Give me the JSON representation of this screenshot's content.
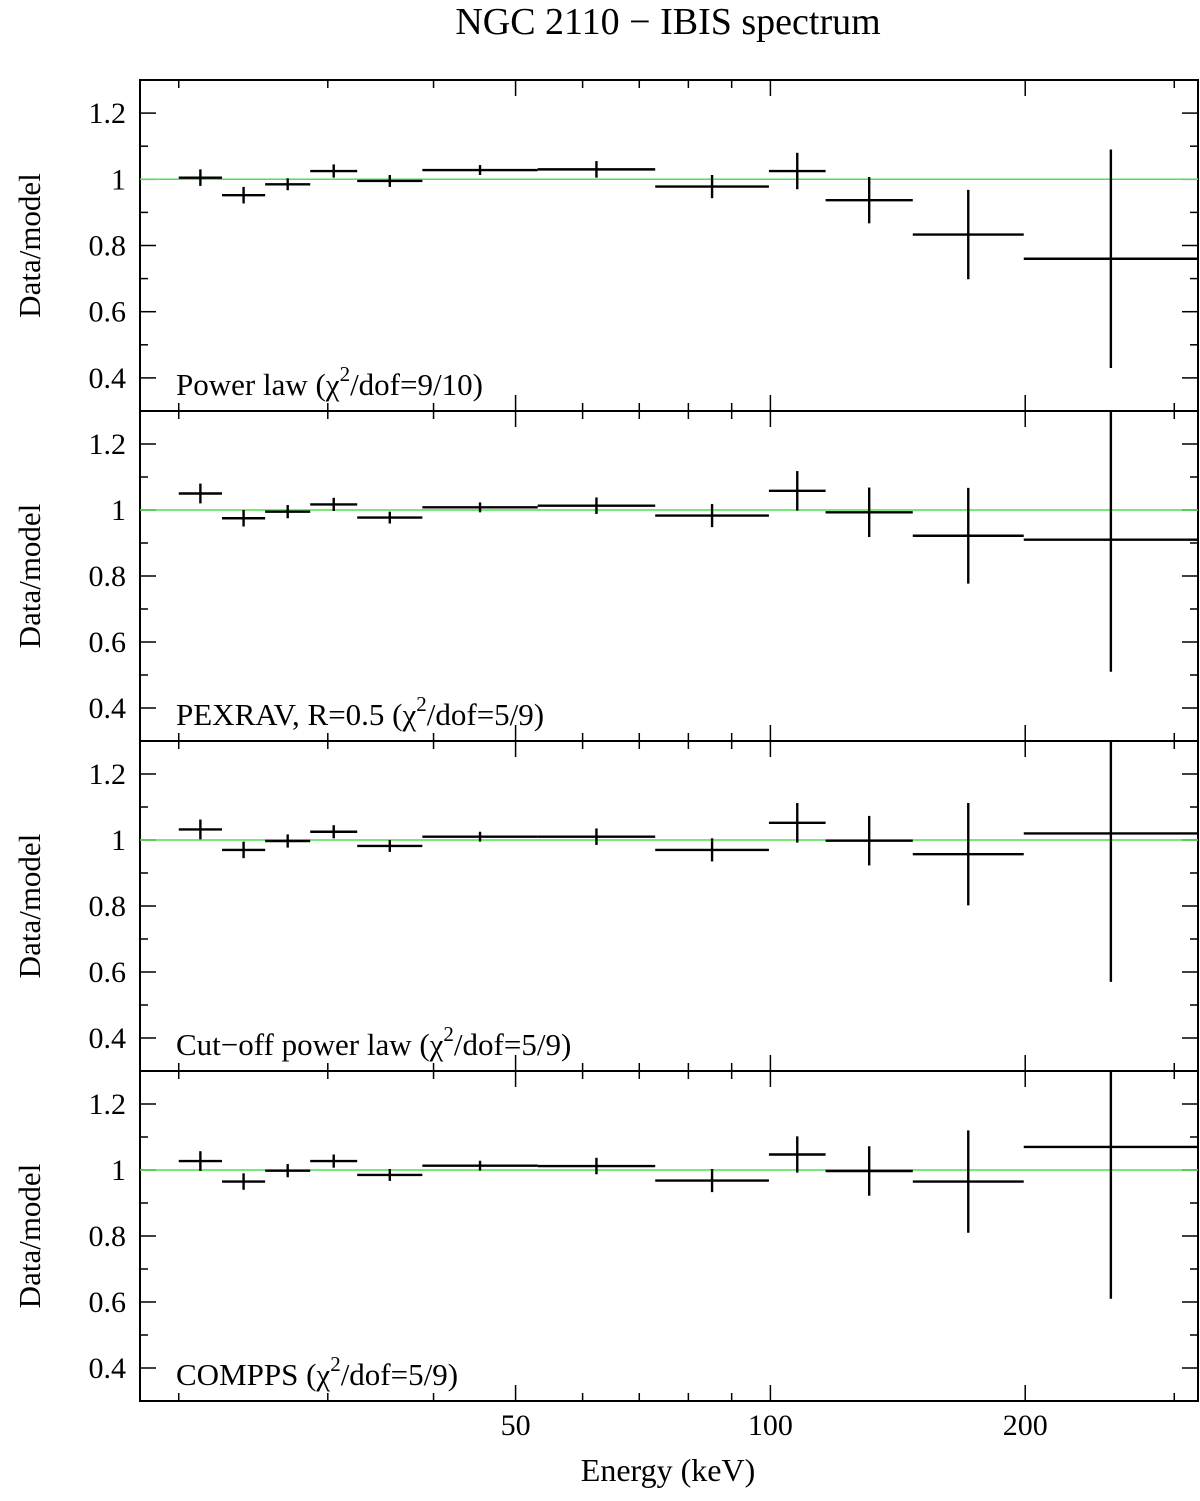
{
  "chart_data": {
    "type": "scatter",
    "title": "NGC 2110 − IBIS spectrum",
    "xlabel": "Energy (keV)",
    "ylabel": "Data/model",
    "x_scale": "log",
    "xlim": [
      18,
      320
    ],
    "ylim": [
      0.3,
      1.3
    ],
    "x_ticks": [
      50,
      100,
      200
    ],
    "x_tick_labels": [
      "50",
      "100",
      "200"
    ],
    "y_ticks": [
      0.4,
      0.6,
      0.8,
      1.0,
      1.2
    ],
    "y_tick_labels": [
      "0.4",
      "0.6",
      "0.8",
      "1",
      "1.2"
    ],
    "reference_line": {
      "y": 1.0,
      "color": "#4fe24f"
    },
    "grid": false,
    "x_bins": [
      {
        "lo": 20.0,
        "hi": 22.5
      },
      {
        "lo": 22.5,
        "hi": 25.3
      },
      {
        "lo": 25.3,
        "hi": 28.6
      },
      {
        "lo": 28.6,
        "hi": 32.5
      },
      {
        "lo": 32.5,
        "hi": 38.8
      },
      {
        "lo": 38.8,
        "hi": 53.1
      },
      {
        "lo": 53.1,
        "hi": 73.1
      },
      {
        "lo": 73.1,
        "hi": 99.6
      },
      {
        "lo": 99.6,
        "hi": 116.2
      },
      {
        "lo": 116.2,
        "hi": 147.3
      },
      {
        "lo": 147.3,
        "hi": 199.2
      },
      {
        "lo": 199.2,
        "hi": 320.0
      }
    ],
    "panels": [
      {
        "label": "Power law (χ",
        "label_sup": "2",
        "label_tail": "/dof=9/10)",
        "series": [
          {
            "y": [
              1.005,
              0.952,
              0.985,
              1.025,
              0.995,
              1.028,
              1.03,
              0.978,
              1.025,
              0.937,
              0.833,
              0.76
            ],
            "yerr": [
              0.025,
              0.025,
              0.018,
              0.02,
              0.018,
              0.015,
              0.025,
              0.035,
              0.055,
              0.07,
              0.135,
              0.33
            ]
          }
        ]
      },
      {
        "label": "PEXRAV, R=0.5 (χ",
        "label_sup": "2",
        "label_tail": "/dof=5/9)",
        "series": [
          {
            "y": [
              1.05,
              0.975,
              0.995,
              1.017,
              0.977,
              1.008,
              1.013,
              0.983,
              1.058,
              0.993,
              0.922,
              0.91
            ],
            "yerr": [
              0.03,
              0.025,
              0.02,
              0.02,
              0.018,
              0.015,
              0.025,
              0.035,
              0.06,
              0.075,
              0.145,
              0.4
            ]
          }
        ]
      },
      {
        "label": "Cut−off power law (χ",
        "label_sup": "2",
        "label_tail": "/dof=5/9)",
        "series": [
          {
            "y": [
              1.032,
              0.97,
              0.997,
              1.025,
              0.982,
              1.01,
              1.01,
              0.97,
              1.052,
              0.998,
              0.957,
              1.02
            ],
            "yerr": [
              0.03,
              0.025,
              0.02,
              0.02,
              0.018,
              0.015,
              0.025,
              0.035,
              0.06,
              0.075,
              0.155,
              0.45
            ]
          }
        ]
      },
      {
        "label": "COMPPS (χ",
        "label_sup": "2",
        "label_tail": "/dof=5/9)",
        "series": [
          {
            "y": [
              1.027,
              0.965,
              0.998,
              1.027,
              0.985,
              1.013,
              1.012,
              0.968,
              1.047,
              0.997,
              0.965,
              1.07
            ],
            "yerr": [
              0.03,
              0.025,
              0.02,
              0.02,
              0.018,
              0.015,
              0.025,
              0.035,
              0.055,
              0.075,
              0.155,
              0.46
            ]
          }
        ]
      }
    ]
  }
}
